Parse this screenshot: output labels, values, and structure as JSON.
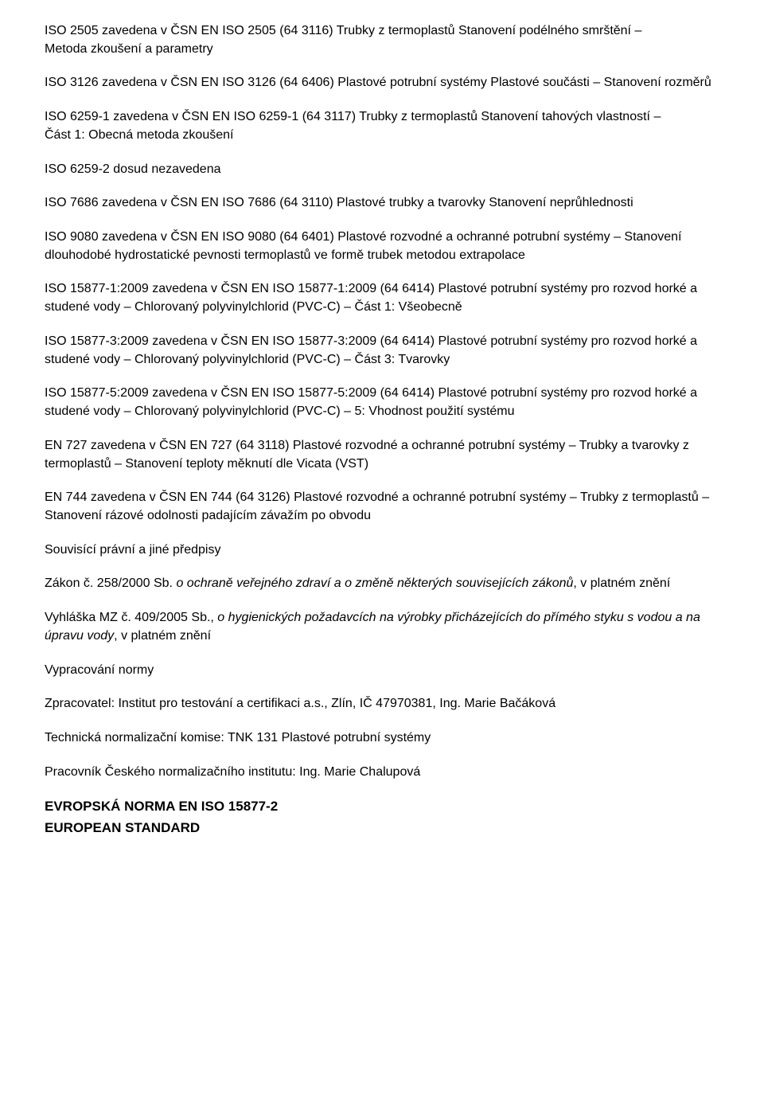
{
  "p1a": "ISO 2505 zavedena v ČSN EN ISO 2505 (64 3116) Trubky z termoplastů Stanovení podélného smrštění –",
  "p1b": "Metoda zkoušení a parametry",
  "p2": "ISO 3126 zavedena v ČSN EN ISO 3126 (64 6406) Plastové potrubní systémy Plastové součásti – Stanovení rozměrů",
  "p3": "ISO 6259-1 zavedena v ČSN EN ISO 6259-1 (64 3117) Trubky z termoplastů Stanovení tahových vlastností –",
  "p3b": "Část 1: Obecná metoda zkoušení",
  "p4": "ISO 6259-2 dosud nezavedena",
  "p5": "ISO 7686 zavedena v ČSN EN ISO 7686 (64 3110) Plastové trubky a tvarovky Stanovení neprůhlednosti",
  "p6": "ISO 9080 zavedena v ČSN EN ISO 9080 (64 6401) Plastové rozvodné a ochranné potrubní systémy – Stanovení dlouhodobé hydrostatické pevnosti termoplastů ve formě trubek metodou extrapolace",
  "p7": "ISO 15877-1:2009 zavedena v ČSN EN ISO 15877-1:2009 (64 6414) Plastové potrubní systémy pro rozvod horké a studené vody – Chlorovaný polyvinylchlorid (PVC-C) – Část 1: Všeobecně",
  "p8": "ISO 15877-3:2009 zavedena v ČSN EN ISO 15877-3:2009 (64 6414) Plastové potrubní systémy pro rozvod horké a studené vody – Chlorovaný polyvinylchlorid (PVC-C) – Část 3: Tvarovky",
  "p9": "ISO 15877-5:2009 zavedena v ČSN EN ISO 15877-5:2009 (64 6414) Plastové potrubní systémy pro rozvod horké a studené vody – Chlorovaný polyvinylchlorid (PVC-C) – 5: Vhodnost použití systému",
  "p10": "EN 727 zavedena v ČSN EN 727 (64 3118) Plastové rozvodné a ochranné potrubní systémy – Trubky a tvarovky z termoplastů – Stanovení teploty měknutí dle Vicata (VST)",
  "p11a": "EN 744 zavedena v ČSN EN 744 (64 3126) Plastové rozvodné a ochranné potrubní systémy – Trubky z termoplastů –",
  "p11b": "Stanovení rázové odolnosti padajícím závažím po obvodu",
  "p12": "Souvisící právní a jiné předpisy",
  "p13a": "Zákon č. 258/2000 Sb. ",
  "p13b": "o ochraně veřejného zdraví a o změně některých souvisejících zákonů",
  "p13c": ", v platném znění",
  "p14a": "Vyhláška MZ č. 409/2005 Sb., ",
  "p14b": "o hygienických požadavcích na výrobky přicházejících do přímého styku s vodou a na úpravu vody",
  "p14c": ", v platném znění",
  "p15": "Vypracování normy",
  "p16": "Zpracovatel: Institut pro testování a certifikaci a.s., Zlín, IČ 47970381, Ing. Marie Bačáková",
  "p17": "Technická normalizační komise: TNK 131 Plastové potrubní systémy",
  "p18": "Pracovník Českého normalizačního institutu: Ing. Marie Chalupová",
  "p19a": "EVROPSKÁ NORMA EN ISO 15877-2",
  "p19b": "EUROPEAN STANDARD"
}
